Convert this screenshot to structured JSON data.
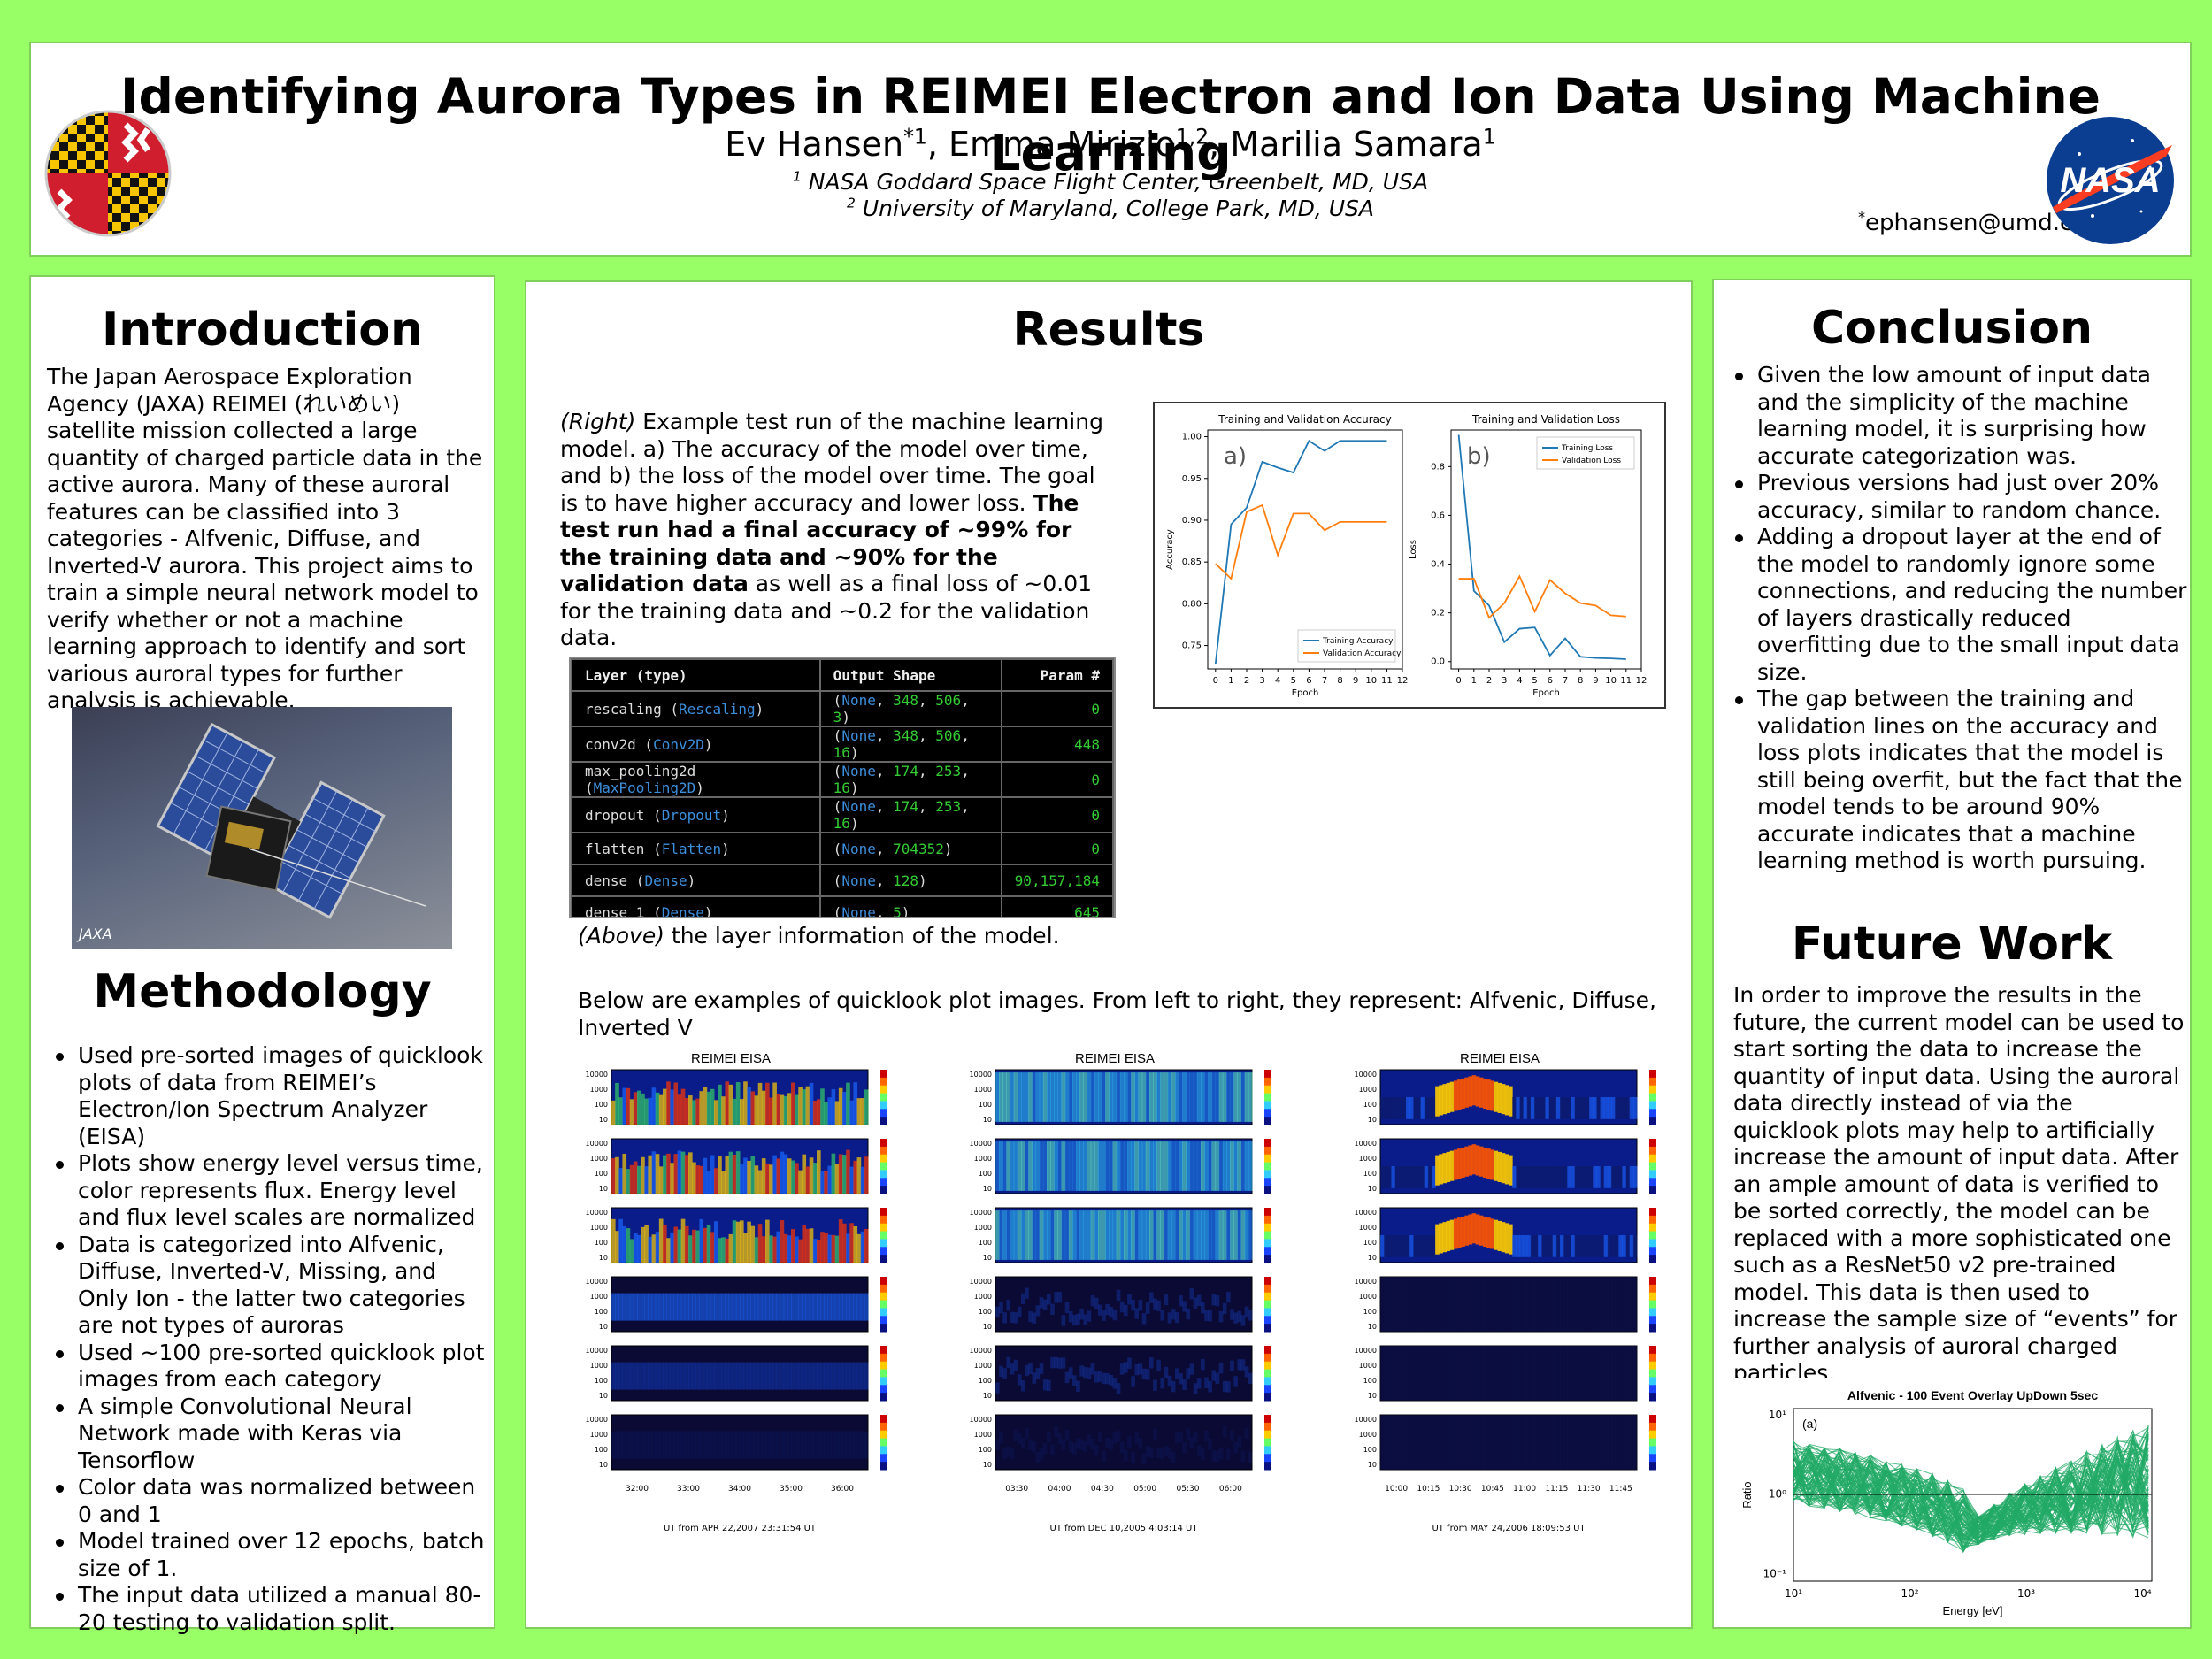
{
  "header": {
    "title": "Identifying Aurora Types in REIMEI Electron and Ion Data Using Machine Learning",
    "authors": [
      {
        "name": "Ev Hansen",
        "sup": "*1"
      },
      {
        "name": "Emma Mirizio",
        "sup": "1,2"
      },
      {
        "name": "Marilia Samara",
        "sup": "1"
      }
    ],
    "affiliations": [
      {
        "num": "1",
        "text": "NASA Goddard Space Flight Center, Greenbelt, MD, USA"
      },
      {
        "num": "2",
        "text": "University of Maryland, College Park, MD, USA"
      }
    ],
    "email_mark": "*",
    "email": "ephansen@umd.edu",
    "logo_left": "university-of-maryland-logo",
    "logo_right": "nasa-meatball-logo",
    "logo_right_text": "NASA"
  },
  "introduction": {
    "title": "Introduction",
    "body": "The Japan Aerospace Exploration Agency (JAXA) REIMEI (れいめい) satellite mission collected a large quantity of charged particle data in the active aurora. Many of these auroral features can be classified into 3 categories - Alfvenic, Diffuse, and Inverted-V aurora. This project aims to train a simple neural network model to verify whether or not a machine learning approach to identify and sort various auroral types for further analysis is achievable.",
    "image_credit": "JAXA"
  },
  "methodology": {
    "title": "Methodology",
    "items": [
      "Used pre-sorted images of quicklook plots of data from REIMEI’s Electron/Ion Spectrum Analyzer (EISA)",
      "Plots show energy level versus time, color represents flux. Energy level and flux level scales are normalized",
      "Data is categorized into Alfvenic, Diffuse, Inverted-V, Missing, and Only Ion - the latter two categories are not types of auroras",
      "Used ~100 pre-sorted quicklook plot images from each category",
      "A simple Convolutional Neural Network made with Keras via Tensorflow",
      "Color data was normalized between 0 and 1",
      "Model trained over 12 epochs, batch size of 1.",
      "The input data utilized a manual 80-20 testing to validation split."
    ]
  },
  "results": {
    "title": "Results",
    "caption_right": {
      "lead": "(Right)",
      "part1": " Example test run of the machine learning model. a) The accuracy of the model over time, and b) the loss of the model over time. The goal is to have higher accuracy and lower loss. ",
      "bold": "The test run had a final accuracy of ~99% for the training data and ~90% for the validation data",
      "part2": " as well as a final loss of ~0.01 for the training data and ~0.2 for the validation data."
    },
    "caption_above": {
      "lead": "(Above)",
      "text": " the layer information of the model."
    },
    "quicklook_intro": "Below are examples of quicklook plot images. From left to right, they represent: Alfvenic, Diffuse, Inverted V",
    "model_table": {
      "headers": [
        "Layer (type)",
        "Output Shape",
        "Param #"
      ],
      "rows": [
        {
          "name": "rescaling",
          "type": "Rescaling",
          "shape": [
            "None",
            "348",
            "506",
            "3"
          ],
          "params": "0"
        },
        {
          "name": "conv2d",
          "type": "Conv2D",
          "shape": [
            "None",
            "348",
            "506",
            "16"
          ],
          "params": "448"
        },
        {
          "name": "max_pooling2d",
          "type": "MaxPooling2D",
          "shape": [
            "None",
            "174",
            "253",
            "16"
          ],
          "params": "0"
        },
        {
          "name": "dropout",
          "type": "Dropout",
          "shape": [
            "None",
            "174",
            "253",
            "16"
          ],
          "params": "0"
        },
        {
          "name": "flatten",
          "type": "Flatten",
          "shape": [
            "None",
            "704352"
          ],
          "params": "0"
        },
        {
          "name": "dense",
          "type": "Dense",
          "shape": [
            "None",
            "128"
          ],
          "params": "90,157,184"
        },
        {
          "name": "dense_1",
          "type": "Dense",
          "shape": [
            "None",
            "5"
          ],
          "params": "645"
        }
      ]
    },
    "quicklooks": [
      {
        "title": "REIMEI EISA",
        "category": "Alfvenic",
        "ut": "UT from APR 22,2007   23:31:54 UT",
        "times": [
          "32:00",
          "33:00",
          "34:00",
          "35:00",
          "36:00"
        ]
      },
      {
        "title": "REIMEI EISA",
        "category": "Diffuse",
        "ut": "UT from DEC 10,2005   4:03:14 UT",
        "times": [
          "03:30",
          "04:00",
          "04:30",
          "05:00",
          "05:30",
          "06:00"
        ]
      },
      {
        "title": "REIMEI EISA",
        "category": "Inverted V",
        "ut": "UT from MAY 24,2006   18:09:53 UT",
        "times": [
          "10:00",
          "10:15",
          "10:30",
          "10:45",
          "11:00",
          "11:15",
          "11:30",
          "11:45"
        ]
      }
    ]
  },
  "chart_data": [
    {
      "type": "line",
      "title": "Training and Validation Accuracy",
      "panel_label": "a)",
      "xlabel": "Epoch",
      "ylabel": "Accuracy",
      "x": [
        0,
        1,
        2,
        3,
        4,
        5,
        6,
        7,
        8,
        9,
        10,
        11
      ],
      "xlim": [
        -0.5,
        12
      ],
      "ylim": [
        0.722,
        1.008
      ],
      "xticks": [
        0,
        1,
        2,
        3,
        4,
        5,
        6,
        7,
        8,
        9,
        10,
        11,
        12
      ],
      "yticks": [
        0.75,
        0.8,
        0.85,
        0.9,
        0.95,
        1.0
      ],
      "legend": "bottom-right",
      "series": [
        {
          "name": "Training Accuracy",
          "color": "#1f77b4",
          "values": [
            0.728,
            0.895,
            0.915,
            0.97,
            0.963,
            0.957,
            0.995,
            0.983,
            0.995,
            0.995,
            0.995,
            0.995
          ]
        },
        {
          "name": "Validation Accuracy",
          "color": "#ff7f0e",
          "values": [
            0.848,
            0.83,
            0.91,
            0.918,
            0.858,
            0.908,
            0.908,
            0.888,
            0.898,
            0.898,
            0.898,
            0.898
          ]
        }
      ]
    },
    {
      "type": "line",
      "title": "Training and Validation Loss",
      "panel_label": "b)",
      "xlabel": "Epoch",
      "ylabel": "Loss",
      "x": [
        0,
        1,
        2,
        3,
        4,
        5,
        6,
        7,
        8,
        9,
        10,
        11
      ],
      "xlim": [
        -0.5,
        12
      ],
      "ylim": [
        -0.03,
        0.95
      ],
      "xticks": [
        0,
        1,
        2,
        3,
        4,
        5,
        6,
        7,
        8,
        9,
        10,
        11,
        12
      ],
      "yticks": [
        0.0,
        0.2,
        0.4,
        0.6,
        0.8
      ],
      "legend": "top-right",
      "series": [
        {
          "name": "Training Loss",
          "color": "#1f77b4",
          "values": [
            0.93,
            0.29,
            0.23,
            0.08,
            0.135,
            0.14,
            0.025,
            0.095,
            0.02,
            0.015,
            0.013,
            0.01
          ]
        },
        {
          "name": "Validation Loss",
          "color": "#ff7f0e",
          "values": [
            0.34,
            0.34,
            0.18,
            0.24,
            0.35,
            0.205,
            0.335,
            0.28,
            0.24,
            0.23,
            0.19,
            0.185
          ]
        }
      ]
    },
    {
      "type": "line",
      "title": "Alfvenic - 100 Event Overlay UpDown  5sec",
      "panel_label": "(a)",
      "xlabel": "Energy [eV]",
      "ylabel": "Ratio",
      "x_scale": "log",
      "y_scale": "log",
      "xlim": [
        10,
        12000
      ],
      "ylim": [
        0.08,
        12
      ],
      "xticks": [
        "10¹",
        "10²",
        "10³",
        "10⁴"
      ],
      "yticks": [
        "10⁻¹",
        "10⁰",
        "10¹"
      ],
      "reference_line": 1,
      "series_color": "#22aa66",
      "series_count": 100
    }
  ],
  "conclusion": {
    "title": "Conclusion",
    "items": [
      "Given the low amount of input data and the simplicity of the machine learning model, it is surprising how accurate categorization was.",
      "Previous versions had just over 20% accuracy, similar to random chance.",
      "Adding a dropout layer at the end of the model to randomly ignore some connections, and reducing the number of layers drastically reduced overfitting due to the small input data size.",
      "The gap between the training and validation lines on the accuracy and loss plots indicates that the model is still being overfit, but the fact that the model tends to be around 90% accurate indicates that a machine learning method is worth pursuing."
    ]
  },
  "future_work": {
    "title": "Future Work",
    "body": "In order to improve the results in the future, the current model can be used to start sorting the data to increase the quantity of input data. Using the auroral data directly instead of via the quicklook plots may help to artificially increase the amount of input data. After an ample amount of data is verified to be sorted correctly, the model can be replaced with a more sophisticated one such as a ResNet50 v2 pre-trained model. This data is then used to increase the sample size of “events” for further analysis of auroral charged particles."
  }
}
